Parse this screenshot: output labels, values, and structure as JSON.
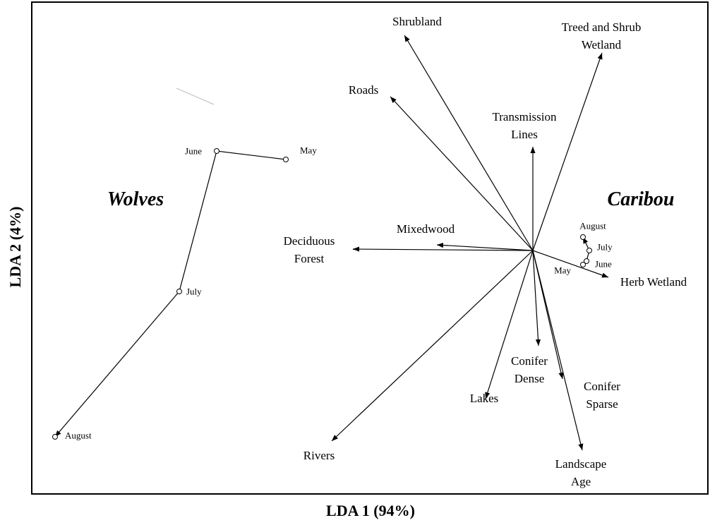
{
  "chart_data": {
    "type": "biplot",
    "x_label": "LDA 1 (94%)",
    "y_label": "LDA 2 (4%)",
    "xlim": [
      -7.1,
      2.48
    ],
    "ylim": [
      -3.45,
      3.52
    ],
    "vectors": [
      {
        "name": "Shrubland",
        "x": -1.82,
        "y": 3.05
      },
      {
        "name": "Treed and Shrub Wetland",
        "x": 0.98,
        "y": 2.8
      },
      {
        "name": "Roads",
        "x": -2.02,
        "y": 2.18
      },
      {
        "name": "Transmission Lines",
        "x": 0,
        "y": 1.47
      },
      {
        "name": "Mixedwood",
        "x": -1.36,
        "y": 0.08
      },
      {
        "name": "Deciduous Forest",
        "x": -2.55,
        "y": 0.02
      },
      {
        "name": "Herb Wetland",
        "x": 1.07,
        "y": -0.38
      },
      {
        "name": "Conifer Dense",
        "x": 0.08,
        "y": -1.35
      },
      {
        "name": "Lakes",
        "x": -0.67,
        "y": -2.1
      },
      {
        "name": "Conifer Sparse",
        "x": 0.42,
        "y": -1.82
      },
      {
        "name": "Landscape Age",
        "x": 0.7,
        "y": -2.83
      },
      {
        "name": "Rivers",
        "x": -2.85,
        "y": -2.7
      }
    ],
    "groups": [
      {
        "name": "Wolves",
        "labels": [
          "May",
          "June",
          "July",
          "August"
        ],
        "x": [
          -3.5,
          -4.48,
          -5.01,
          -6.77
        ],
        "y": [
          1.29,
          1.41,
          -0.58,
          -2.64
        ]
      },
      {
        "name": "Caribou",
        "labels": [
          "May",
          "June",
          "July",
          "August"
        ],
        "x": [
          0.71,
          0.76,
          0.8,
          0.71
        ],
        "y": [
          -0.2,
          -0.15,
          0.0,
          0.19
        ]
      }
    ]
  }
}
